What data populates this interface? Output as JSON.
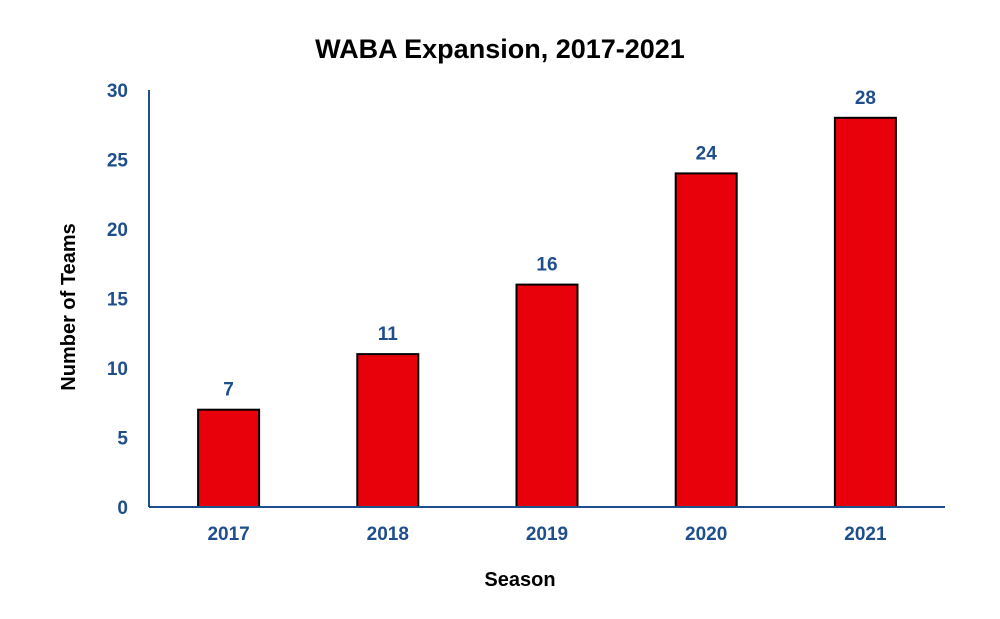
{
  "chart_data": {
    "type": "bar",
    "title": "WABA Expansion, 2017-2021",
    "xlabel": "Season",
    "ylabel": "Number of Teams",
    "categories": [
      "2017",
      "2018",
      "2019",
      "2020",
      "2021"
    ],
    "values": [
      7,
      11,
      16,
      24,
      28
    ],
    "data_labels": [
      "7",
      "11",
      "16",
      "24",
      "28"
    ],
    "ylim": [
      0,
      30
    ],
    "yticks": [
      "0",
      "5",
      "10",
      "15",
      "20",
      "25",
      "30"
    ],
    "grid": false,
    "legend": "none",
    "colors": {
      "bar_fill": "#e8000b",
      "bar_stroke": "#000000",
      "axis_line": "#1f4e8c",
      "tick_text": "#1f4e8c",
      "data_label_text": "#1f4e8c",
      "title_text": "#000000",
      "axis_title_text": "#000000"
    }
  }
}
